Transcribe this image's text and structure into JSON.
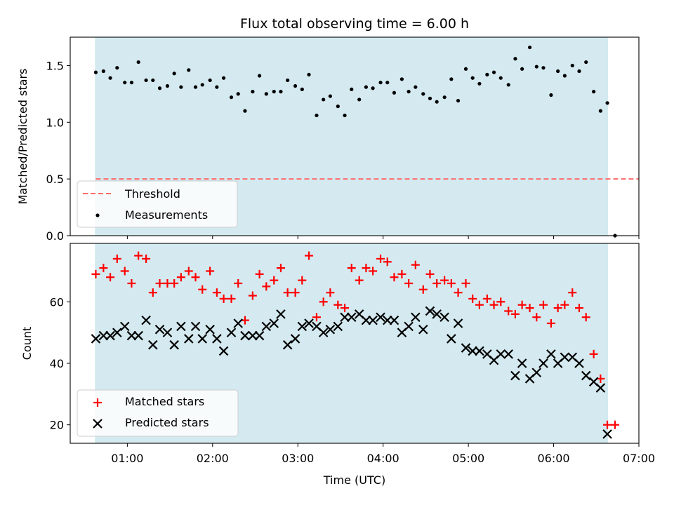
{
  "chart_data": {
    "title": "Flux total observing time = 6.00 h",
    "xlabel": "Time (UTC)",
    "x_unit": "hours",
    "xlim": [
      0.33,
      7.0
    ],
    "xticks": [
      1,
      2,
      3,
      4,
      5,
      6,
      7
    ],
    "xtick_labels": [
      "01:00",
      "02:00",
      "03:00",
      "04:00",
      "05:00",
      "06:00",
      "07:00"
    ],
    "observing_window": [
      0.63,
      6.63
    ],
    "window_color": "#d4eaf0",
    "panels": [
      {
        "type": "scatter",
        "ylabel": "Matched/Predicted stars",
        "ylim": [
          0.0,
          1.75
        ],
        "yticks": [
          0.0,
          0.5,
          1.0,
          1.5
        ],
        "ytick_labels": [
          "0.0",
          "0.5",
          "1.0",
          "1.5"
        ],
        "threshold": {
          "name": "Threshold",
          "y": 0.5,
          "x_range": [
            0.63,
            7.0
          ],
          "color": "#ff6b6b"
        },
        "legend_position": "lower-left",
        "series": [
          {
            "name": "Measurements",
            "marker": "dot",
            "color": "#000000",
            "x": [
              0.63,
              0.72,
              0.8,
              0.88,
              0.97,
              1.05,
              1.13,
              1.22,
              1.3,
              1.38,
              1.47,
              1.55,
              1.63,
              1.72,
              1.8,
              1.88,
              1.97,
              2.05,
              2.13,
              2.22,
              2.3,
              2.38,
              2.47,
              2.55,
              2.63,
              2.72,
              2.8,
              2.88,
              2.97,
              3.05,
              3.13,
              3.22,
              3.3,
              3.38,
              3.47,
              3.55,
              3.63,
              3.72,
              3.8,
              3.88,
              3.97,
              4.05,
              4.13,
              4.22,
              4.3,
              4.38,
              4.47,
              4.55,
              4.63,
              4.72,
              4.8,
              4.88,
              4.97,
              5.05,
              5.13,
              5.22,
              5.3,
              5.38,
              5.47,
              5.55,
              5.63,
              5.72,
              5.8,
              5.88,
              5.97,
              6.05,
              6.13,
              6.22,
              6.3,
              6.38,
              6.47,
              6.55,
              6.63,
              6.72
            ],
            "y": [
              1.44,
              1.45,
              1.39,
              1.48,
              1.35,
              1.35,
              1.53,
              1.37,
              1.37,
              1.3,
              1.32,
              1.43,
              1.31,
              1.46,
              1.31,
              1.33,
              1.37,
              1.31,
              1.39,
              1.22,
              1.25,
              1.1,
              1.27,
              1.41,
              1.25,
              1.27,
              1.27,
              1.37,
              1.32,
              1.29,
              1.42,
              1.06,
              1.2,
              1.23,
              1.14,
              1.06,
              1.29,
              1.2,
              1.31,
              1.3,
              1.35,
              1.35,
              1.26,
              1.38,
              1.27,
              1.31,
              1.25,
              1.21,
              1.18,
              1.22,
              1.38,
              1.19,
              1.47,
              1.39,
              1.34,
              1.42,
              1.44,
              1.39,
              1.33,
              1.56,
              1.47,
              1.66,
              1.49,
              1.48,
              1.24,
              1.45,
              1.41,
              1.5,
              1.45,
              1.53,
              1.27,
              1.1,
              1.17,
              0.0
            ]
          }
        ]
      },
      {
        "type": "scatter",
        "ylabel": "Count",
        "ylim": [
          14,
          79
        ],
        "yticks": [
          20,
          40,
          60
        ],
        "ytick_labels": [
          "20",
          "40",
          "60"
        ],
        "legend_position": "lower-left",
        "series": [
          {
            "name": "Matched stars",
            "marker": "plus",
            "color": "#ff0000",
            "x": [
              0.63,
              0.72,
              0.8,
              0.88,
              0.97,
              1.05,
              1.13,
              1.22,
              1.3,
              1.38,
              1.47,
              1.55,
              1.63,
              1.72,
              1.8,
              1.88,
              1.97,
              2.05,
              2.13,
              2.22,
              2.3,
              2.38,
              2.47,
              2.55,
              2.63,
              2.72,
              2.8,
              2.88,
              2.97,
              3.05,
              3.13,
              3.22,
              3.3,
              3.38,
              3.47,
              3.55,
              3.63,
              3.72,
              3.8,
              3.88,
              3.97,
              4.05,
              4.13,
              4.22,
              4.3,
              4.38,
              4.47,
              4.55,
              4.63,
              4.72,
              4.8,
              4.88,
              4.97,
              5.05,
              5.13,
              5.22,
              5.3,
              5.38,
              5.47,
              5.55,
              5.63,
              5.72,
              5.8,
              5.88,
              5.97,
              6.05,
              6.13,
              6.22,
              6.3,
              6.38,
              6.47,
              6.55,
              6.63,
              6.72
            ],
            "y": [
              69,
              71,
              68,
              74,
              70,
              66,
              75,
              74,
              63,
              66,
              66,
              66,
              68,
              70,
              68,
              64,
              70,
              63,
              61,
              61,
              66,
              54,
              62,
              69,
              65,
              67,
              71,
              63,
              63,
              67,
              75,
              55,
              60,
              63,
              59,
              58,
              71,
              67,
              71,
              70,
              74,
              73,
              68,
              69,
              66,
              72,
              64,
              69,
              66,
              67,
              66,
              63,
              66,
              61,
              59,
              61,
              59,
              60,
              57,
              56,
              59,
              58,
              55,
              59,
              53,
              58,
              59,
              63,
              58,
              55,
              43,
              35,
              20,
              20
            ]
          },
          {
            "name": "Predicted stars",
            "marker": "x",
            "color": "#000000",
            "x": [
              0.63,
              0.72,
              0.8,
              0.88,
              0.97,
              1.05,
              1.13,
              1.22,
              1.3,
              1.38,
              1.47,
              1.55,
              1.63,
              1.72,
              1.8,
              1.88,
              1.97,
              2.05,
              2.13,
              2.22,
              2.3,
              2.38,
              2.47,
              2.55,
              2.63,
              2.72,
              2.8,
              2.88,
              2.97,
              3.05,
              3.13,
              3.22,
              3.3,
              3.38,
              3.47,
              3.55,
              3.63,
              3.72,
              3.8,
              3.88,
              3.97,
              4.05,
              4.13,
              4.22,
              4.3,
              4.38,
              4.47,
              4.55,
              4.63,
              4.72,
              4.8,
              4.88,
              4.97,
              5.05,
              5.13,
              5.22,
              5.3,
              5.38,
              5.47,
              5.55,
              5.63,
              5.72,
              5.8,
              5.88,
              5.97,
              6.05,
              6.13,
              6.22,
              6.3,
              6.38,
              6.47,
              6.55,
              6.63
            ],
            "y": [
              48,
              49,
              49,
              50,
              52,
              49,
              49,
              54,
              46,
              51,
              50,
              46,
              52,
              48,
              52,
              48,
              51,
              48,
              44,
              50,
              53,
              49,
              49,
              49,
              52,
              53,
              56,
              46,
              48,
              52,
              53,
              52,
              50,
              51,
              52,
              55,
              55,
              56,
              54,
              54,
              55,
              54,
              54,
              50,
              52,
              55,
              51,
              57,
              56,
              55,
              48,
              53,
              45,
              44,
              44,
              43,
              41,
              43,
              43,
              36,
              40,
              35,
              37,
              40,
              43,
              40,
              42,
              42,
              40,
              36,
              34,
              32,
              17
            ]
          }
        ]
      }
    ]
  }
}
